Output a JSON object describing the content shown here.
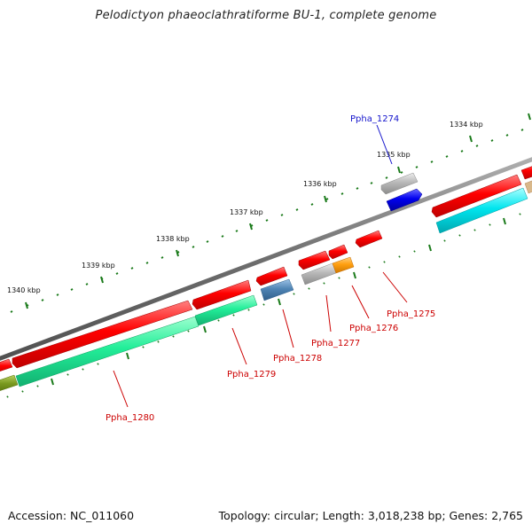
{
  "title": "Pelodictyon phaeoclathratiforme BU-1, complete genome",
  "footer": {
    "accession": "Accession: NC_011060",
    "summary": "Topology: circular; Length: 3,018,238 bp; Genes: 2,765"
  },
  "colors": {
    "backbone": "#7a7a7a",
    "tick": "#1a7a1a",
    "highlight_label": "#1515cc",
    "gene_label": "#cc0000",
    "red_cds": "#ff0000",
    "green_track": "#22ee99",
    "cyan_track": "#00e5ee",
    "gray_track": "#b0b0b0",
    "blue_cds": "#0000ee",
    "steel_track": "#4f84b4",
    "orange_track": "#ff9f10",
    "olive_track": "#7a9a20"
  },
  "ruler": {
    "unit": "kbp",
    "ticks": [
      {
        "pos_kbp": 1334,
        "label": "1334 kbp"
      },
      {
        "pos_kbp": 1335,
        "label": "1335 kbp"
      },
      {
        "pos_kbp": 1336,
        "label": "1336 kbp"
      },
      {
        "pos_kbp": 1337,
        "label": "1337 kbp"
      },
      {
        "pos_kbp": 1338,
        "label": "1338 kbp"
      },
      {
        "pos_kbp": 1339,
        "label": "1339 kbp"
      },
      {
        "pos_kbp": 1340,
        "label": "1340 kbp"
      }
    ]
  },
  "labels": [
    {
      "id": "Ppha_1274",
      "text": "Ppha_1274",
      "style": "highlight"
    },
    {
      "id": "Ppha_1275",
      "text": "Ppha_1275",
      "style": "normal"
    },
    {
      "id": "Ppha_1276",
      "text": "Ppha_1276",
      "style": "normal"
    },
    {
      "id": "Ppha_1277",
      "text": "Ppha_1277",
      "style": "normal"
    },
    {
      "id": "Ppha_1278",
      "text": "Ppha_1278",
      "style": "normal"
    },
    {
      "id": "Ppha_1279",
      "text": "Ppha_1279",
      "style": "normal"
    },
    {
      "id": "Ppha_1280",
      "text": "Ppha_1280",
      "style": "normal"
    }
  ]
}
